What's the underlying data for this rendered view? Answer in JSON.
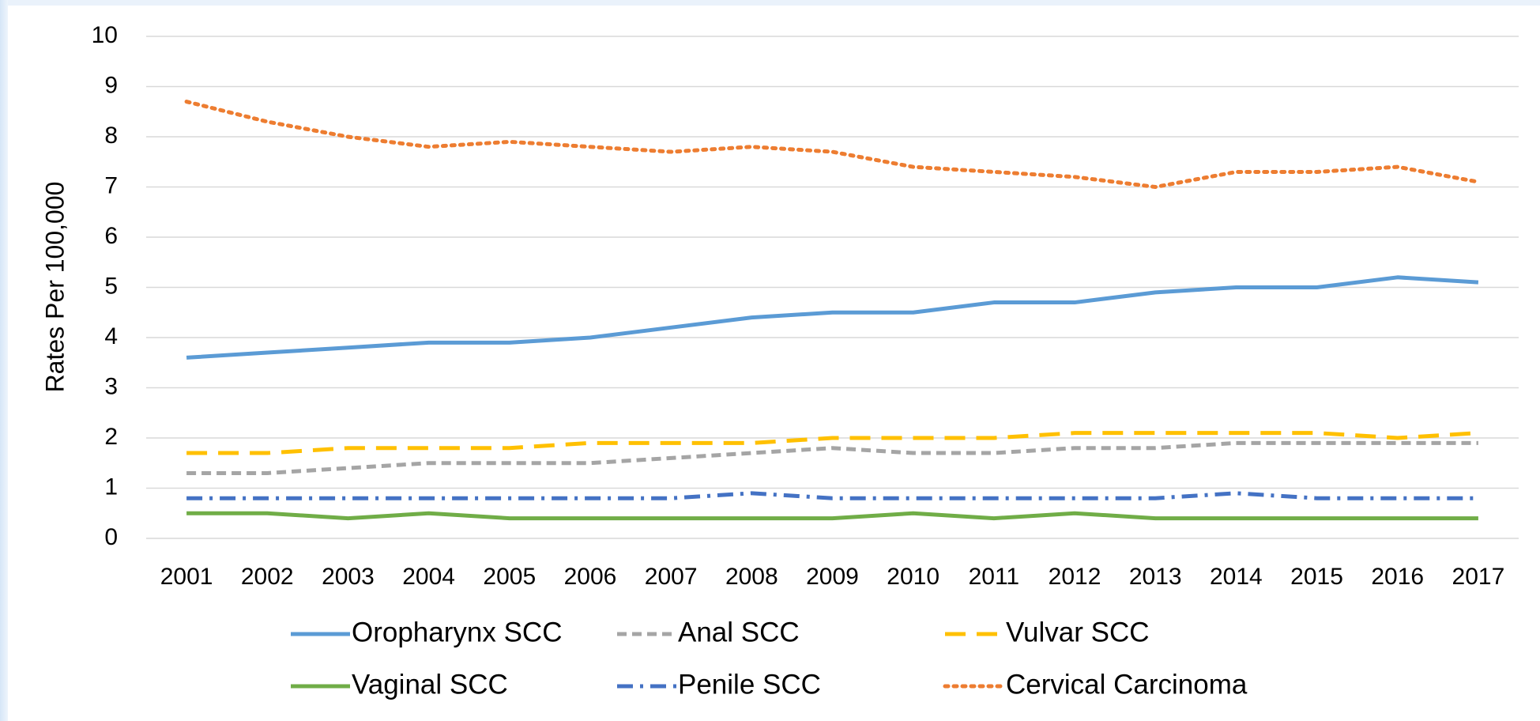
{
  "chart_data": {
    "type": "line",
    "y_label": "Rates Per 100,000",
    "categories": [
      "2001",
      "2002",
      "2003",
      "2004",
      "2005",
      "2006",
      "2007",
      "2008",
      "2009",
      "2010",
      "2011",
      "2012",
      "2013",
      "2014",
      "2015",
      "2016",
      "2017"
    ],
    "series": [
      {
        "name": "Oropharynx SCC",
        "color": "#5b9bd5",
        "dash": "solid",
        "values": [
          3.6,
          3.7,
          3.8,
          3.9,
          3.9,
          4.0,
          4.2,
          4.4,
          4.5,
          4.5,
          4.7,
          4.7,
          4.9,
          5.0,
          5.0,
          5.2,
          5.1
        ]
      },
      {
        "name": "Anal SCC",
        "color": "#a5a5a5",
        "dash": "dash",
        "values": [
          1.3,
          1.3,
          1.4,
          1.5,
          1.5,
          1.5,
          1.6,
          1.7,
          1.8,
          1.7,
          1.7,
          1.8,
          1.8,
          1.9,
          1.9,
          1.9,
          1.9
        ]
      },
      {
        "name": "Vulvar SCC",
        "color": "#ffc000",
        "dash": "long-dash",
        "values": [
          1.7,
          1.7,
          1.8,
          1.8,
          1.8,
          1.9,
          1.9,
          1.9,
          2.0,
          2.0,
          2.0,
          2.1,
          2.1,
          2.1,
          2.1,
          2.0,
          2.1
        ]
      },
      {
        "name": "Vaginal SCC",
        "color": "#70ad47",
        "dash": "solid",
        "values": [
          0.5,
          0.5,
          0.4,
          0.5,
          0.4,
          0.4,
          0.4,
          0.4,
          0.4,
          0.5,
          0.4,
          0.5,
          0.4,
          0.4,
          0.4,
          0.4,
          0.4
        ]
      },
      {
        "name": "Penile SCC",
        "color": "#4472c4",
        "dash": "dash-dot",
        "values": [
          0.8,
          0.8,
          0.8,
          0.8,
          0.8,
          0.8,
          0.8,
          0.9,
          0.8,
          0.8,
          0.8,
          0.8,
          0.8,
          0.9,
          0.8,
          0.8,
          0.8
        ]
      },
      {
        "name": "Cervical Carcinoma",
        "color": "#ed7d31",
        "dash": "dot",
        "values": [
          8.7,
          8.3,
          8.0,
          7.8,
          7.9,
          7.8,
          7.7,
          7.8,
          7.7,
          7.4,
          7.3,
          7.2,
          7.0,
          7.3,
          7.3,
          7.4,
          7.1
        ]
      }
    ],
    "ylim": [
      0,
      10
    ],
    "yticks": [
      0,
      1,
      2,
      3,
      4,
      5,
      6,
      7,
      8,
      9,
      10
    ],
    "grid": true,
    "legend": "bottom"
  }
}
